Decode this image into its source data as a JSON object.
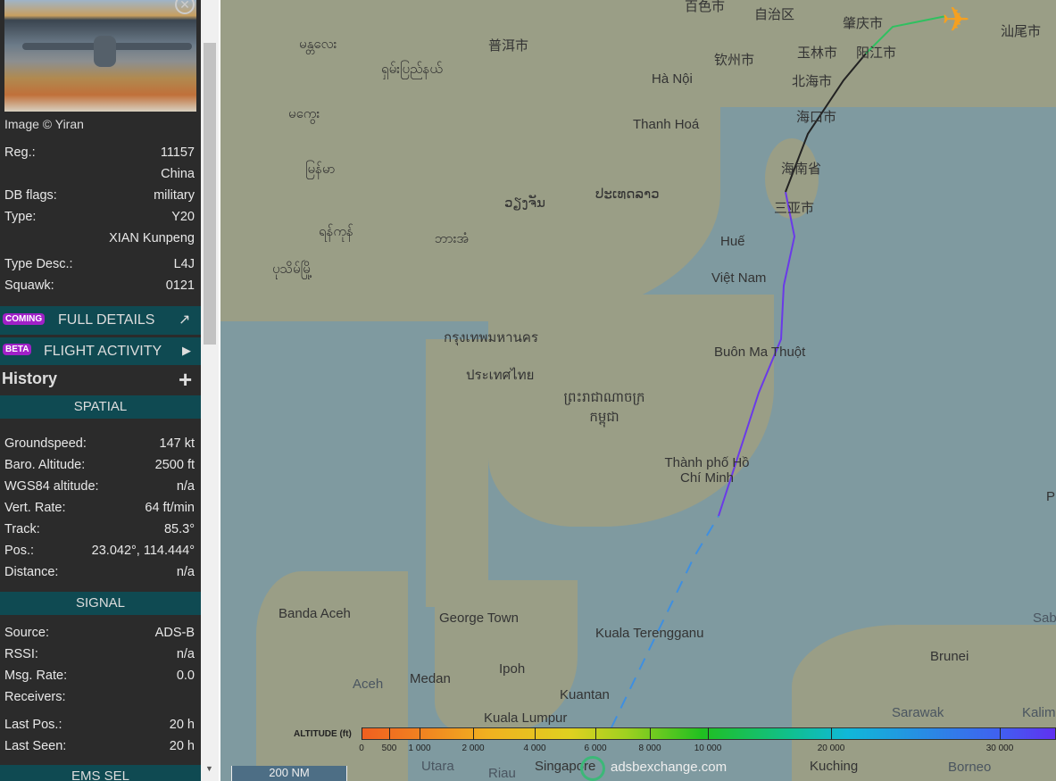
{
  "sidebar": {
    "close_icon": "close-icon",
    "image_credit": "Image © Yiran",
    "info": [
      {
        "k": "Reg.:",
        "v": "11157"
      },
      {
        "k": "",
        "v": "China"
      },
      {
        "k": "DB flags:",
        "v": "military"
      },
      {
        "k": "Type:",
        "v": "Y20"
      },
      {
        "k": "",
        "v": "XIAN Kunpeng"
      },
      {
        "k": "Type Desc.:",
        "v": "L4J"
      },
      {
        "k": "Squawk:",
        "v": "0121"
      }
    ],
    "full_details": {
      "badge": "COMING",
      "label": "FULL DETAILS",
      "icon": "external-link-icon"
    },
    "flight_activity": {
      "badge": "BETA",
      "label": "FLIGHT ACTIVITY",
      "icon": "caret-right-icon"
    },
    "history": {
      "label": "History",
      "icon": "plus-icon"
    },
    "spatial": {
      "title": "SPATIAL",
      "rows": [
        {
          "k": "Groundspeed:",
          "v": "147 kt"
        },
        {
          "k": "Baro. Altitude:",
          "v": "2500 ft"
        },
        {
          "k": "WGS84 altitude:",
          "v": "n/a"
        },
        {
          "k": "Vert. Rate:",
          "v": "64 ft/min"
        },
        {
          "k": "Track:",
          "v": "85.3°"
        },
        {
          "k": "Pos.:",
          "v": "23.042°, 114.444°"
        },
        {
          "k": "Distance:",
          "v": "n/a"
        }
      ]
    },
    "signal": {
      "title": "SIGNAL",
      "rows": [
        {
          "k": "Source:",
          "v": "ADS-B"
        },
        {
          "k": "RSSI:",
          "v": "n/a"
        },
        {
          "k": "Msg. Rate:",
          "v": "0.0"
        },
        {
          "k": "Receivers:",
          "v": ""
        },
        {
          "k": "Last Pos.:",
          "v": "20 h"
        },
        {
          "k": "Last Seen:",
          "v": "20 h"
        }
      ]
    },
    "ems_title": "EMS SEL"
  },
  "map": {
    "labels": [
      "百色市",
      "自治区",
      "肇庆市",
      "汕尾市",
      "普洱市",
      "玉林市",
      "阳江市",
      "钦州市",
      "北海市",
      "Hà Nội",
      "မန္တလေး",
      "ရှမ်းပြည်နယ်",
      "မကွေး",
      "Thanh Hoá",
      "海口市",
      "海南省",
      "မြန်မာ",
      "ວຽງຈັນ",
      "ປະເທດລາວ",
      "三亚市",
      "ရန်ကုန်",
      "ဘားအံ",
      "ပုသိမ်မြို့",
      "Huế",
      "Việt Nam",
      "กรุงเทพมหานคร",
      "Buôn Ma Thuột",
      "ประเทศไทย",
      "ព្រះរាជាណាចក្រ កម្ពុជា",
      "Thành phố Hồ Chí Minh",
      "Banda Aceh",
      "George Town",
      "Kuala Terengganu",
      "Ipoh",
      "Medan",
      "Brunei",
      "Kuantan",
      "Kuala Lumpur",
      "Sarawak",
      "Kuching",
      "Borneo",
      "Aceh",
      "Utara",
      "Riau",
      "Singapore",
      "Kalimar",
      "Sabah",
      "P"
    ],
    "aircraft_icon": "airplane-icon",
    "track_colors": [
      "#3f8fe0",
      "#6a3ae8",
      "#222222",
      "#30c060"
    ],
    "scale": "200 NM",
    "attribution": "adsbexchange.com"
  },
  "altitude_legend": {
    "title": "ALTITUDE (ft)",
    "ticks": [
      "0",
      "500",
      "1 000",
      "2 000",
      "4 000",
      "6 000",
      "8 000",
      "10 000",
      "20 000",
      "30 000"
    ]
  }
}
